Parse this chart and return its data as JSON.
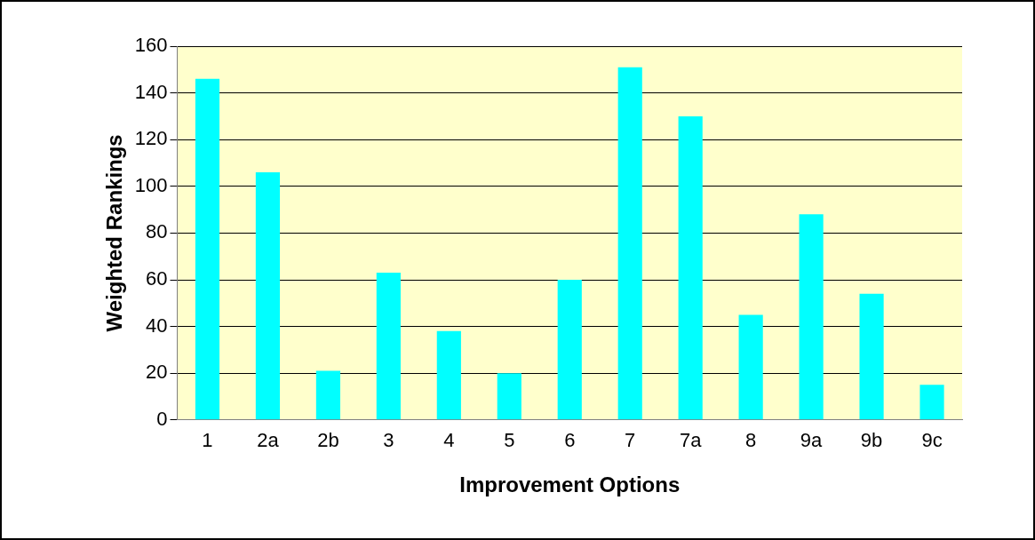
{
  "chart_data": {
    "type": "bar",
    "xlabel": "Improvement Options",
    "ylabel": "Weighted Rankings",
    "categories": [
      "1",
      "2a",
      "2b",
      "3",
      "4",
      "5",
      "6",
      "7",
      "7a",
      "8",
      "9a",
      "9b",
      "9c"
    ],
    "values": [
      146,
      106,
      21,
      63,
      38,
      20,
      60,
      151,
      130,
      45,
      88,
      54,
      15
    ],
    "color": "#00ffff",
    "ylim": [
      0,
      160
    ],
    "yticks": [
      0,
      20,
      40,
      60,
      80,
      100,
      120,
      140,
      160
    ],
    "grid": "y",
    "legend": false
  }
}
